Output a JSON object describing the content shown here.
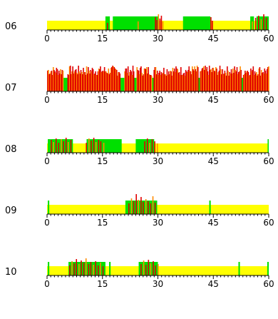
{
  "chart_data": [
    {
      "type": "bar",
      "label": "06",
      "xlim": [
        0,
        60
      ],
      "ticks": [
        "0",
        "15",
        "30",
        "45",
        "60"
      ],
      "green": [
        [
          15.8,
          17.0
        ],
        [
          17.8,
          30.0
        ],
        [
          36.8,
          44.2
        ],
        [
          55.0,
          56.0
        ],
        [
          56.7,
          60.0
        ]
      ],
      "bars": [
        [
          16.2,
          10
        ],
        [
          24.5,
          12
        ],
        [
          29.2,
          18
        ],
        [
          29.6,
          14
        ],
        [
          30.0,
          22
        ],
        [
          30.4,
          16
        ],
        [
          30.8,
          20
        ],
        [
          31.2,
          12
        ],
        [
          44.2,
          18
        ],
        [
          44.6,
          13
        ],
        [
          55.4,
          12
        ],
        [
          56.3,
          17
        ],
        [
          57.1,
          20
        ],
        [
          57.8,
          15
        ],
        [
          58.5,
          22
        ],
        [
          59.2,
          17
        ]
      ],
      "colors": {
        "yellow": "#FFFF00",
        "green": "#00E000",
        "red": "#E00000",
        "orange": "#FF8C00"
      }
    },
    {
      "type": "bar",
      "label": "07",
      "xlim": [
        0,
        60
      ],
      "ticks": [
        "0",
        "15",
        "30",
        "45",
        "60"
      ],
      "green": [
        [
          0,
          60
        ]
      ],
      "bars": "dense",
      "gaps": [
        [
          4.2,
          5.3
        ],
        [
          19.8,
          20.7
        ],
        [
          23.5,
          24.0
        ],
        [
          28.2,
          28.6
        ],
        [
          40.8,
          41.3
        ],
        [
          52.5,
          53.0
        ]
      ],
      "colors": {
        "yellow": "#FFFF00",
        "green": "#00E000",
        "red": "#E00000",
        "orange": "#FF8C00"
      }
    },
    {
      "type": "bar",
      "label": "08",
      "xlim": [
        0,
        60
      ],
      "ticks": [
        "0",
        "15",
        "30",
        "45",
        "60"
      ],
      "green": [
        [
          0.2,
          1.0
        ],
        [
          1.0,
          7.0
        ],
        [
          10.7,
          20.2
        ],
        [
          24.0,
          29.0
        ],
        [
          59.7,
          60.0
        ]
      ],
      "bars": [
        [
          1.0,
          18
        ],
        [
          1.6,
          15
        ],
        [
          2.3,
          20
        ],
        [
          3.0,
          14
        ],
        [
          3.7,
          19
        ],
        [
          4.3,
          16
        ],
        [
          5.0,
          21
        ],
        [
          5.6,
          15
        ],
        [
          6.3,
          18
        ],
        [
          10.5,
          14
        ],
        [
          11.2,
          20
        ],
        [
          11.8,
          17
        ],
        [
          12.5,
          21
        ],
        [
          13.1,
          15
        ],
        [
          13.8,
          18
        ],
        [
          14.4,
          16
        ],
        [
          15.2,
          14
        ],
        [
          26.3,
          16
        ],
        [
          27.0,
          20
        ],
        [
          27.6,
          14
        ],
        [
          28.3,
          19
        ],
        [
          29.0,
          16
        ],
        [
          29.7,
          13
        ]
      ],
      "colors": {
        "yellow": "#FFFF00",
        "green": "#00E000",
        "red": "#E00000",
        "orange": "#FF8C00"
      }
    },
    {
      "type": "bar",
      "label": "09",
      "xlim": [
        0,
        60
      ],
      "ticks": [
        "0",
        "15",
        "30",
        "45",
        "60"
      ],
      "green": [
        [
          0.2,
          0.6
        ],
        [
          21.2,
          29.8
        ],
        [
          43.9,
          44.3
        ]
      ],
      "bars": [
        [
          22.0,
          15
        ],
        [
          22.7,
          22
        ],
        [
          23.3,
          18
        ],
        [
          24.0,
          28
        ],
        [
          24.6,
          20
        ],
        [
          25.3,
          24
        ],
        [
          25.9,
          17
        ],
        [
          26.6,
          21
        ],
        [
          27.2,
          18
        ],
        [
          27.9,
          15
        ],
        [
          28.5,
          25
        ],
        [
          29.1,
          16
        ]
      ],
      "colors": {
        "yellow": "#FFFF00",
        "green": "#00E000",
        "red": "#E00000",
        "orange": "#FF8C00"
      }
    },
    {
      "type": "bar",
      "label": "10",
      "xlim": [
        0,
        60
      ],
      "ticks": [
        "0",
        "15",
        "30",
        "45",
        "60"
      ],
      "green": [
        [
          0.2,
          0.6
        ],
        [
          5.8,
          15.8
        ],
        [
          16.8,
          17.2
        ],
        [
          24.8,
          30.0
        ],
        [
          51.8,
          52.2
        ],
        [
          59.6,
          60.0
        ]
      ],
      "bars": [
        [
          6.0,
          14
        ],
        [
          6.6,
          20
        ],
        [
          7.2,
          17
        ],
        [
          7.8,
          23
        ],
        [
          8.5,
          16
        ],
        [
          9.1,
          21
        ],
        [
          9.8,
          18
        ],
        [
          10.4,
          24
        ],
        [
          11.1,
          16
        ],
        [
          11.7,
          19
        ],
        [
          12.4,
          15
        ],
        [
          13.0,
          20
        ],
        [
          13.7,
          14
        ],
        [
          14.3,
          18
        ],
        [
          15.0,
          13
        ],
        [
          25.3,
          16
        ],
        [
          26.0,
          21
        ],
        [
          26.6,
          15
        ],
        [
          27.3,
          22
        ],
        [
          27.9,
          17
        ],
        [
          28.6,
          20
        ],
        [
          29.2,
          14
        ],
        [
          29.9,
          16
        ]
      ],
      "colors": {
        "yellow": "#FFFF00",
        "green": "#00E000",
        "red": "#E00000",
        "orange": "#FF8C00"
      }
    }
  ]
}
